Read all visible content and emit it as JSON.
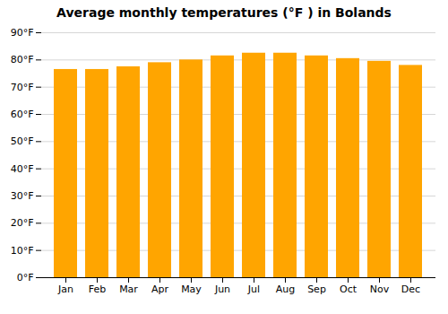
{
  "chart_data": {
    "type": "bar",
    "title": "Average monthly temperatures (°F ) in Bolands",
    "categories": [
      "Jan",
      "Feb",
      "Mar",
      "Apr",
      "May",
      "Jun",
      "Jul",
      "Aug",
      "Sep",
      "Oct",
      "Nov",
      "Dec"
    ],
    "values": [
      76.5,
      76.5,
      77.5,
      79.0,
      80.0,
      81.5,
      82.5,
      82.5,
      81.5,
      80.5,
      79.5,
      78.0
    ],
    "color": "#FFA500",
    "ylim": [
      0,
      90
    ],
    "yticks": [
      {
        "value": 0,
        "label": "0°F"
      },
      {
        "value": 10,
        "label": "10°F"
      },
      {
        "value": 20,
        "label": "20°F"
      },
      {
        "value": 30,
        "label": "30°F"
      },
      {
        "value": 40,
        "label": "40°F"
      },
      {
        "value": 50,
        "label": "50°F"
      },
      {
        "value": 60,
        "label": "60°F"
      },
      {
        "value": 70,
        "label": "70°F"
      },
      {
        "value": 80,
        "label": "80°F"
      },
      {
        "value": 90,
        "label": "90°F"
      }
    ],
    "grid": true
  }
}
